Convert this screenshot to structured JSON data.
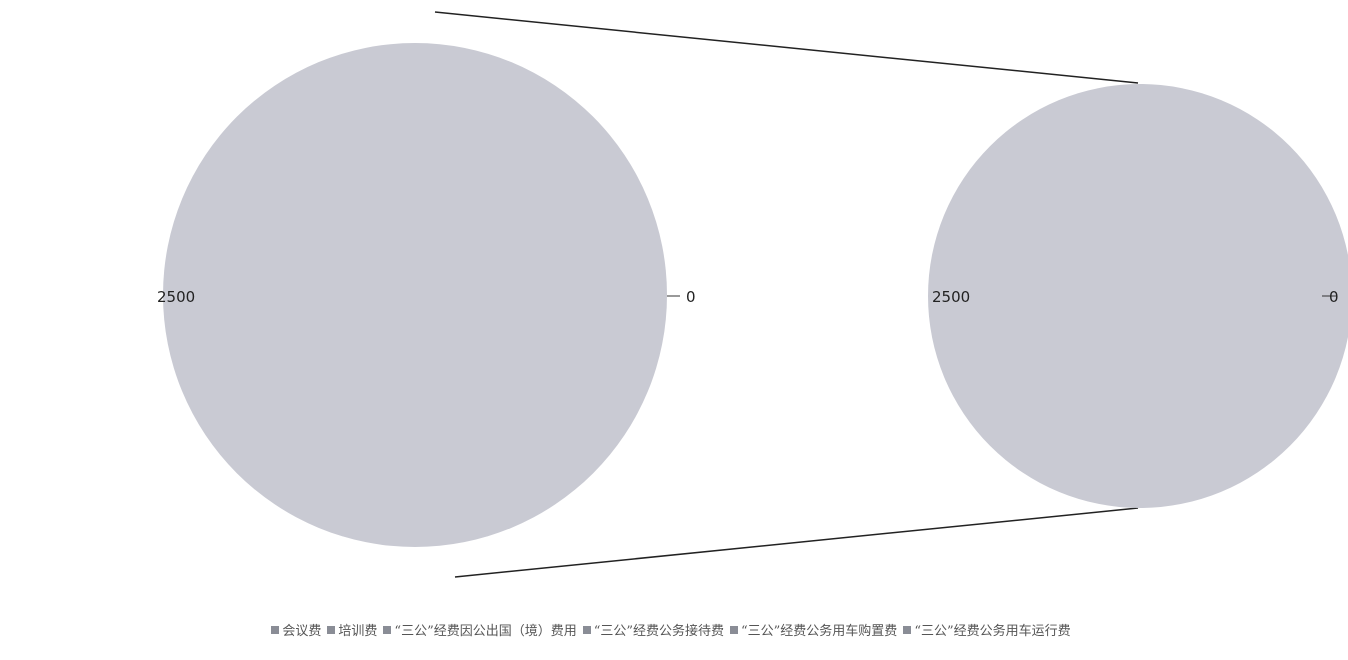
{
  "chart_data": {
    "type": "pie",
    "subtype": "pie-of-pie",
    "pies": [
      {
        "label_left": "2500",
        "label_right": "0",
        "slices": [
          {
            "category": "会议费",
            "value": 2500
          }
        ]
      },
      {
        "label_left": "2500",
        "label_right": "0",
        "slices": [
          {
            "category": "会议费",
            "value": 2500
          }
        ]
      }
    ],
    "legend": {
      "position": "bottom",
      "entries": [
        "会议费",
        "培训费",
        "“三公”经费因公出国（境）费用",
        "“三公”经费公务接待费",
        "“三公”经费公务用车购置费",
        "“三公”经费公务用车运行费"
      ]
    },
    "colors": {
      "slice_fill": "#c9cad3",
      "connector": "#222222",
      "legend_marker": "#8a8d96"
    }
  }
}
